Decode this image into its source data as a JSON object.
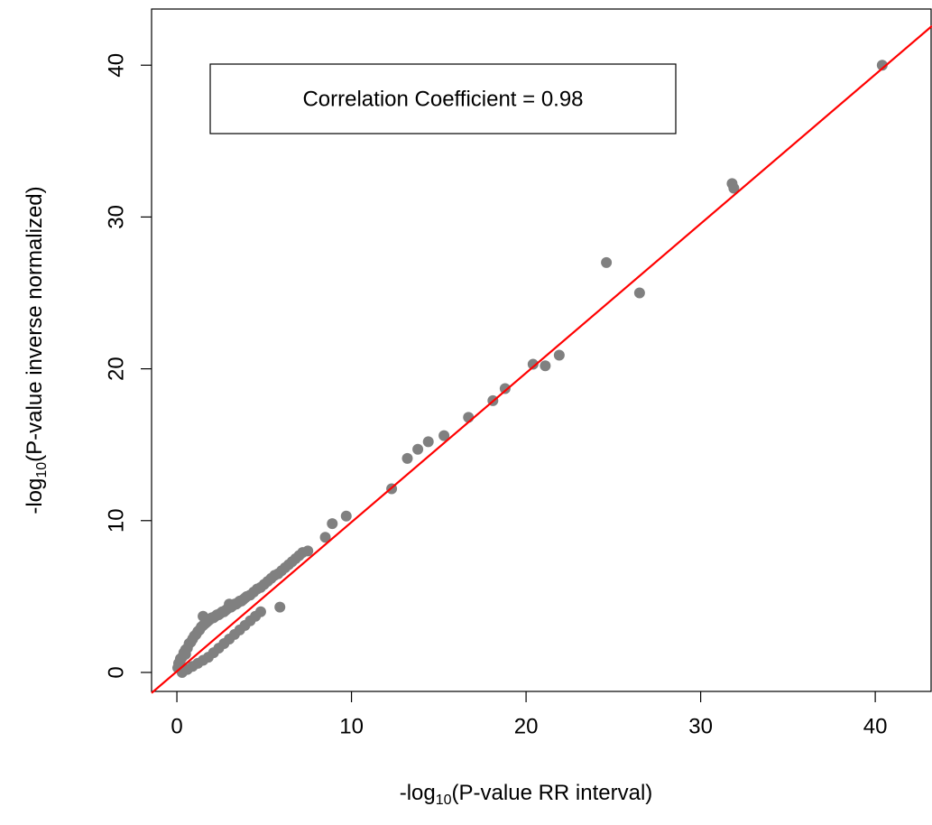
{
  "chart_data": {
    "type": "scatter",
    "annotation": "Correlation Coefficient = 0.98",
    "x_label": {
      "prefix": "-log",
      "sub": "10",
      "suffix": "(P-value RR interval)"
    },
    "y_label": {
      "prefix": "-log",
      "sub": "10",
      "suffix": "(P-value inverse normalized)"
    },
    "xlim": [
      -1.45,
      43.25
    ],
    "ylim": [
      -1.25,
      43.7
    ],
    "xticks": [
      0,
      10,
      20,
      30,
      40
    ],
    "yticks": [
      0,
      10,
      20,
      30,
      40
    ],
    "color": "#808080",
    "fit_line": {
      "color": "#ff0000",
      "slope": 0.983,
      "intercept": 0.07
    },
    "x": [
      40.4,
      31.8,
      31.9,
      24.6,
      26.5,
      20.4,
      21.1,
      21.9,
      18.8,
      18.1,
      16.7,
      15.3,
      14.4,
      13.8,
      13.2,
      12.3,
      9.7,
      8.9,
      8.5,
      5.9,
      7.5,
      0.05,
      0.1,
      0.2,
      0.3,
      0.4,
      0.5,
      0.6,
      0.7,
      0.8,
      0.9,
      1.0,
      1.1,
      1.2,
      1.3,
      1.4,
      1.5,
      1.6,
      1.7,
      1.8,
      1.9,
      2.0,
      2.1,
      2.2,
      2.3,
      2.4,
      2.5,
      2.6,
      2.7,
      2.8,
      2.9,
      3.0,
      3.1,
      3.2,
      3.3,
      3.4,
      3.5,
      3.6,
      3.7,
      3.8,
      3.9,
      4.0,
      4.2,
      4.4,
      4.6,
      4.8,
      5.0,
      5.2,
      5.4,
      5.6,
      5.8,
      6.0,
      6.2,
      6.4,
      6.6,
      6.8,
      7.0,
      7.2,
      0.3,
      0.6,
      0.9,
      1.2,
      1.5,
      1.8,
      2.1,
      2.4,
      2.7,
      3.0,
      3.3,
      3.6,
      3.9,
      4.2,
      4.5,
      4.8,
      1.5,
      3.0,
      0.2,
      0.5
    ],
    "y": [
      40.0,
      32.2,
      31.9,
      27.0,
      25.0,
      20.3,
      20.2,
      20.9,
      18.7,
      17.9,
      16.8,
      15.6,
      15.2,
      14.7,
      14.1,
      12.1,
      10.3,
      9.8,
      8.9,
      4.3,
      8.0,
      0.3,
      0.6,
      0.9,
      1.0,
      1.3,
      1.5,
      1.6,
      1.9,
      2.0,
      2.2,
      2.4,
      2.5,
      2.7,
      2.8,
      3.0,
      3.1,
      3.2,
      3.3,
      3.4,
      3.5,
      3.6,
      3.6,
      3.7,
      3.8,
      3.8,
      3.9,
      4.0,
      4.0,
      4.1,
      4.2,
      4.3,
      4.3,
      4.4,
      4.5,
      4.5,
      4.6,
      4.7,
      4.7,
      4.8,
      4.9,
      5.0,
      5.1,
      5.3,
      5.5,
      5.6,
      5.8,
      6.0,
      6.2,
      6.4,
      6.5,
      6.7,
      6.9,
      7.1,
      7.3,
      7.5,
      7.7,
      7.9,
      0.0,
      0.2,
      0.4,
      0.6,
      0.8,
      1.0,
      1.3,
      1.6,
      1.9,
      2.2,
      2.5,
      2.8,
      3.1,
      3.4,
      3.7,
      4.0,
      3.7,
      4.5,
      0.8,
      1.2
    ]
  }
}
